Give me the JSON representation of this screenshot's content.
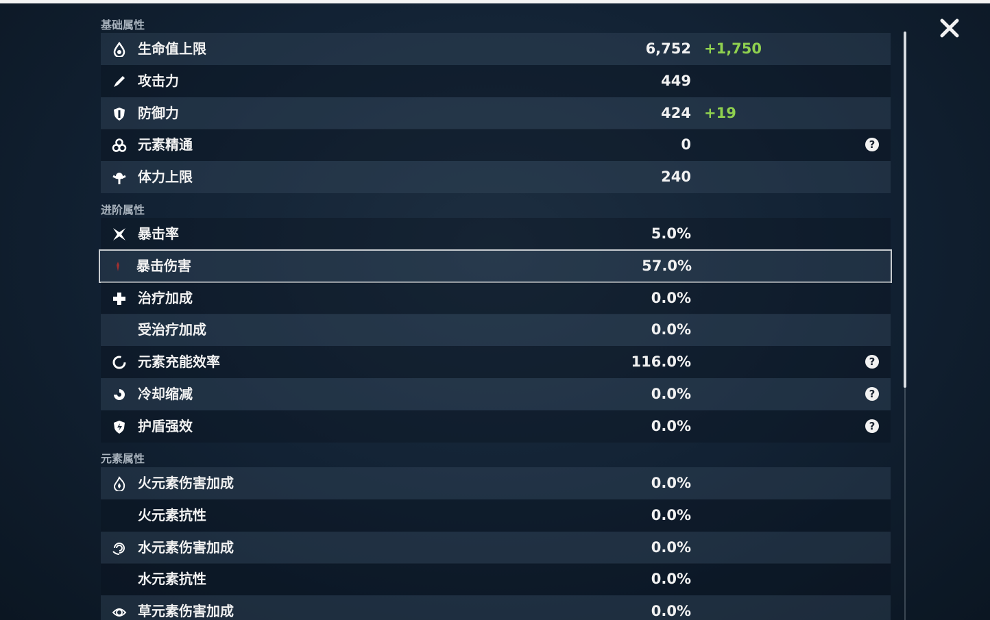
{
  "sections": [
    {
      "title": "基础属性",
      "rows": [
        {
          "label": "生命值上限",
          "value": "6,752",
          "bonus": "+1,750"
        },
        {
          "label": "攻击力",
          "value": "449"
        },
        {
          "label": "防御力",
          "value": "424",
          "bonus": "+19"
        },
        {
          "label": "元素精通",
          "value": "0",
          "help": "?"
        },
        {
          "label": "体力上限",
          "value": "240"
        }
      ]
    },
    {
      "title": "进阶属性",
      "rows": [
        {
          "label": "暴击率",
          "value": "5.0%"
        },
        {
          "label": "暴击伤害",
          "value": "57.0%"
        },
        {
          "label": "治疗加成",
          "value": "0.0%"
        },
        {
          "label": "受治疗加成",
          "value": "0.0%"
        },
        {
          "label": "元素充能效率",
          "value": "116.0%",
          "help": "?"
        },
        {
          "label": "冷却缩减",
          "value": "0.0%",
          "help": "?"
        },
        {
          "label": "护盾强效",
          "value": "0.0%",
          "help": "?"
        }
      ]
    },
    {
      "title": "元素属性",
      "rows": [
        {
          "label": "火元素伤害加成",
          "value": "0.0%"
        },
        {
          "label": "火元素抗性",
          "value": "0.0%"
        },
        {
          "label": "水元素伤害加成",
          "value": "0.0%"
        },
        {
          "label": "水元素抗性",
          "value": "0.0%"
        },
        {
          "label": "草元素伤害加成",
          "value": "0.0%"
        }
      ]
    }
  ]
}
